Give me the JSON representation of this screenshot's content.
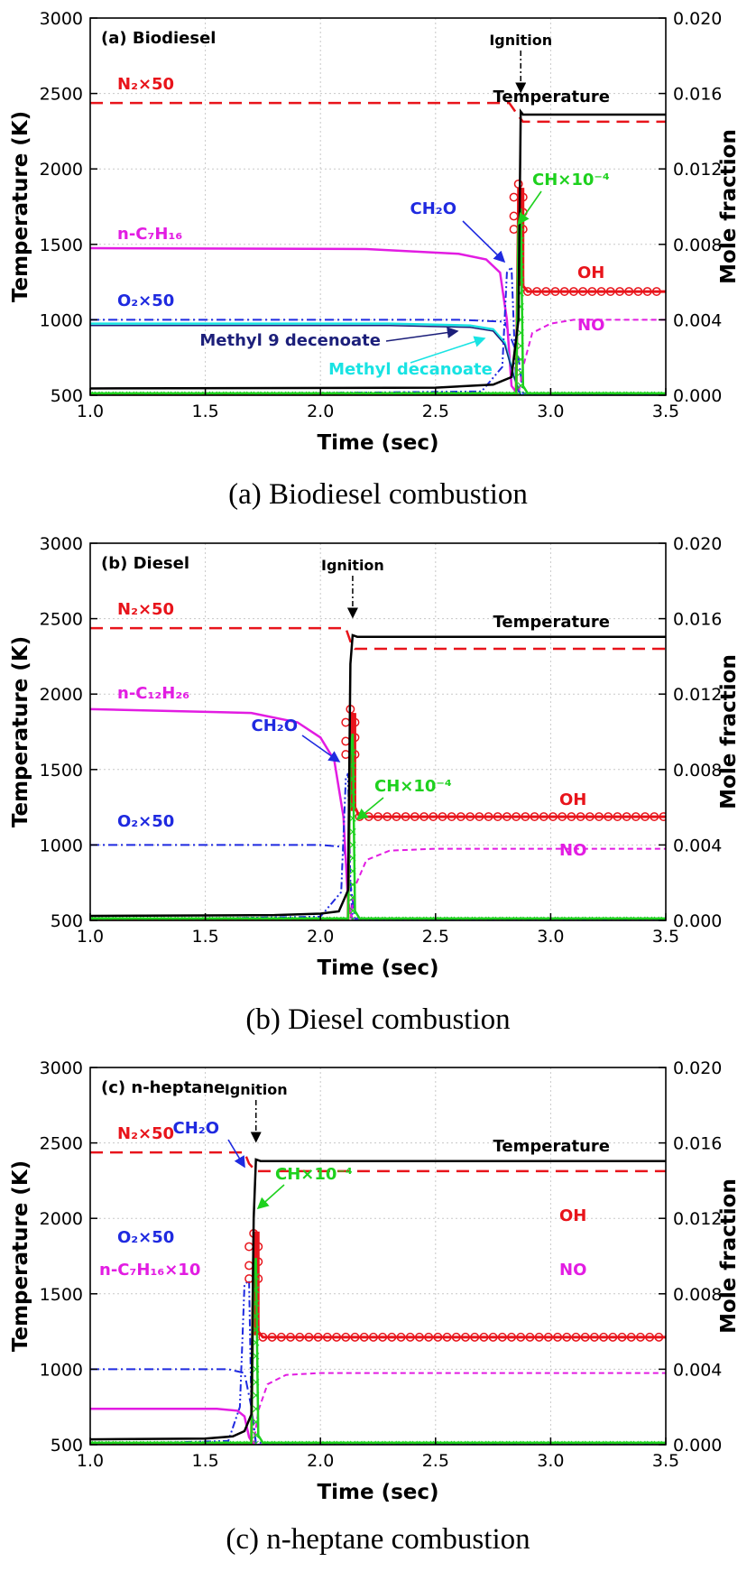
{
  "colors": {
    "temperature": "#000000",
    "n2": "#e8141b",
    "oh": "#e8141b",
    "fuel": "#e21ce2",
    "o2": "#1f2ae0",
    "ch2o": "#1f2ae0",
    "ch": "#1ed11e",
    "no": "#e21ce2",
    "methyl9": "#1c1f7a",
    "methyldecanoate": "#19e3e3",
    "grid": "#c8c8c8"
  },
  "chart_data": [
    {
      "type": "line",
      "panel_label": "(a) Biodiesel",
      "caption": "(a) Biodiesel combustion",
      "xlabel": "Time (sec)",
      "ylabel": "Temperature (K)",
      "y2label": "Mole fraction",
      "xlim": [
        1.0,
        3.5
      ],
      "ylim": [
        500,
        3000
      ],
      "y2lim": [
        0.0,
        0.02
      ],
      "xticks": [
        "1.0",
        "1.5",
        "2.0",
        "2.5",
        "3.0",
        "3.5"
      ],
      "yticks": [
        "500",
        "1000",
        "1500",
        "2000",
        "2500",
        "3000"
      ],
      "y2ticks": [
        "0.000",
        "0.004",
        "0.008",
        "0.012",
        "0.016",
        "0.020"
      ],
      "grid": true,
      "ignition_time": 2.87,
      "ignition_label": "Ignition",
      "labels": {
        "temperature": "Temperature",
        "n2": "N₂×50",
        "fuel": "n-C₇H₁₆",
        "o2": "O₂×50",
        "ch2o": "CH₂O",
        "ch": "CH×10⁻⁴",
        "oh": "OH",
        "no": "NO",
        "methyl9": "Methyl 9 decenoate",
        "methyldecanoate": "Methyl decanoate"
      },
      "series": [
        {
          "name": "Temperature",
          "axis": "left",
          "x": [
            1.0,
            2.5,
            2.75,
            2.83,
            2.86,
            2.87,
            2.88,
            3.5
          ],
          "y": [
            545,
            550,
            570,
            620,
            1000,
            2380,
            2360,
            2360
          ]
        },
        {
          "name": "N2x50",
          "axis": "right",
          "x": [
            1.0,
            2.82,
            2.86,
            2.88,
            3.5
          ],
          "y": [
            0.0155,
            0.0155,
            0.0148,
            0.0145,
            0.0145
          ]
        },
        {
          "name": "n-C7H16",
          "axis": "right",
          "x": [
            1.0,
            2.2,
            2.6,
            2.72,
            2.78,
            2.81,
            2.83,
            2.86,
            3.5
          ],
          "y": [
            0.0078,
            0.00775,
            0.0075,
            0.0072,
            0.0065,
            0.004,
            0.0005,
            0.0,
            0.0
          ]
        },
        {
          "name": "O2x50",
          "axis": "right",
          "x": [
            1.0,
            2.6,
            2.8,
            2.86,
            2.88,
            3.5
          ],
          "y": [
            0.004,
            0.004,
            0.0039,
            0.002,
            0.0001,
            0.0001
          ]
        },
        {
          "name": "Methyl decanoate",
          "axis": "right",
          "x": [
            1.0,
            2.3,
            2.65,
            2.75,
            2.8,
            2.84,
            2.87,
            3.5
          ],
          "y": [
            0.0038,
            0.0038,
            0.0037,
            0.0035,
            0.0028,
            0.001,
            0.0,
            0.0
          ]
        },
        {
          "name": "Methyl 9 decenoate",
          "axis": "right",
          "x": [
            1.0,
            2.3,
            2.65,
            2.75,
            2.8,
            2.84,
            2.87,
            3.5
          ],
          "y": [
            0.0037,
            0.0037,
            0.0036,
            0.0034,
            0.0027,
            0.001,
            0.0,
            0.0
          ]
        },
        {
          "name": "CH2O",
          "axis": "right",
          "x": [
            1.0,
            2.7,
            2.79,
            2.81,
            2.83,
            2.85,
            2.87,
            3.5
          ],
          "y": [
            0.0,
            0.0002,
            0.0015,
            0.0065,
            0.0068,
            0.0005,
            0.0,
            0.0
          ]
        },
        {
          "name": "NO",
          "axis": "right",
          "x": [
            1.0,
            2.86,
            2.88,
            2.92,
            3.0,
            3.1,
            3.5
          ],
          "y": [
            0.0,
            0.0,
            0.0015,
            0.0033,
            0.0038,
            0.004,
            0.004
          ]
        },
        {
          "name": "OH",
          "axis": "right",
          "x": [
            1.0,
            2.85,
            2.86,
            2.87,
            2.88,
            2.9,
            3.5
          ],
          "y": [
            0.0,
            0.0,
            0.0105,
            0.011,
            0.0058,
            0.0055,
            0.0055
          ]
        },
        {
          "name": "CHx1e-4",
          "axis": "right",
          "x": [
            1.0,
            2.85,
            2.86,
            2.87,
            2.88,
            2.9,
            3.5
          ],
          "y": [
            0.0001,
            0.0001,
            0.009,
            0.0099,
            0.0005,
            0.0001,
            0.0001
          ]
        }
      ]
    },
    {
      "type": "line",
      "panel_label": "(b) Diesel",
      "caption": "(b) Diesel combustion",
      "xlabel": "Time (sec)",
      "ylabel": "Temperature (K)",
      "y2label": "Mole fraction",
      "xlim": [
        1.0,
        3.5
      ],
      "ylim": [
        500,
        3000
      ],
      "y2lim": [
        0.0,
        0.02
      ],
      "xticks": [
        "1.0",
        "1.5",
        "2.0",
        "2.5",
        "3.0",
        "3.5"
      ],
      "yticks": [
        "500",
        "1000",
        "1500",
        "2000",
        "2500",
        "3000"
      ],
      "y2ticks": [
        "0.000",
        "0.004",
        "0.008",
        "0.012",
        "0.016",
        "0.020"
      ],
      "grid": true,
      "ignition_time": 2.14,
      "ignition_label": "Ignition",
      "labels": {
        "temperature": "Temperature",
        "n2": "N₂×50",
        "fuel": "n-C₁₂H₂₆",
        "o2": "O₂×50",
        "ch2o": "CH₂O",
        "ch": "CH×10⁻⁴",
        "oh": "OH",
        "no": "NO"
      },
      "series": [
        {
          "name": "Temperature",
          "axis": "left",
          "x": [
            1.0,
            1.8,
            2.0,
            2.08,
            2.12,
            2.13,
            2.14,
            2.16,
            3.5
          ],
          "y": [
            530,
            535,
            545,
            560,
            700,
            2200,
            2390,
            2380,
            2380
          ]
        },
        {
          "name": "N2x50",
          "axis": "right",
          "x": [
            1.0,
            2.11,
            2.13,
            2.15,
            3.5
          ],
          "y": [
            0.0155,
            0.0155,
            0.0148,
            0.0144,
            0.0144
          ]
        },
        {
          "name": "n-C12H26",
          "axis": "right",
          "x": [
            1.0,
            1.7,
            1.9,
            2.0,
            2.06,
            2.1,
            2.12,
            2.14,
            3.5
          ],
          "y": [
            0.0112,
            0.011,
            0.0105,
            0.0097,
            0.0085,
            0.0055,
            0.001,
            0.0,
            0.0
          ]
        },
        {
          "name": "O2x50",
          "axis": "right",
          "x": [
            1.0,
            2.0,
            2.1,
            2.13,
            2.15,
            3.5
          ],
          "y": [
            0.004,
            0.004,
            0.0039,
            0.002,
            0.0001,
            0.0001
          ]
        },
        {
          "name": "CH2O",
          "axis": "right",
          "x": [
            1.0,
            2.0,
            2.09,
            2.11,
            2.12,
            2.13,
            2.14,
            3.5
          ],
          "y": [
            0.0,
            0.0002,
            0.0015,
            0.0075,
            0.0078,
            0.002,
            0.0,
            0.0
          ]
        },
        {
          "name": "NO",
          "axis": "right",
          "x": [
            1.0,
            2.13,
            2.15,
            2.2,
            2.3,
            2.5,
            3.5
          ],
          "y": [
            0.0,
            0.0,
            0.0018,
            0.0032,
            0.0037,
            0.0038,
            0.0038
          ]
        },
        {
          "name": "OH",
          "axis": "right",
          "x": [
            1.0,
            2.12,
            2.13,
            2.14,
            2.15,
            2.17,
            3.5
          ],
          "y": [
            0.0,
            0.0,
            0.0105,
            0.011,
            0.006,
            0.0055,
            0.0055
          ]
        },
        {
          "name": "CHx1e-4",
          "axis": "right",
          "x": [
            1.0,
            2.12,
            2.13,
            2.14,
            2.15,
            2.17,
            3.5
          ],
          "y": [
            0.0001,
            0.0001,
            0.009,
            0.0099,
            0.0005,
            0.0001,
            0.0001
          ]
        }
      ]
    },
    {
      "type": "line",
      "panel_label": "(c) n-heptane",
      "caption": "(c) n-heptane combustion",
      "xlabel": "Time (sec)",
      "ylabel": "Temperature (K)",
      "y2label": "Mole fraction",
      "xlim": [
        1.0,
        3.5
      ],
      "ylim": [
        500,
        3000
      ],
      "y2lim": [
        0.0,
        0.02
      ],
      "xticks": [
        "1.0",
        "1.5",
        "2.0",
        "2.5",
        "3.0",
        "3.5"
      ],
      "yticks": [
        "500",
        "1000",
        "1500",
        "2000",
        "2500",
        "3000"
      ],
      "y2ticks": [
        "0.000",
        "0.004",
        "0.008",
        "0.012",
        "0.016",
        "0.020"
      ],
      "grid": true,
      "ignition_time": 1.72,
      "ignition_label": "Ignition",
      "labels": {
        "temperature": "Temperature",
        "n2": "N₂×50",
        "fuel": "n-C₇H₁₆×10",
        "o2": "O₂×50",
        "ch2o": "CH₂O",
        "ch": "CH×10⁻⁴",
        "oh": "OH",
        "no": "NO"
      },
      "series": [
        {
          "name": "Temperature",
          "axis": "left",
          "x": [
            1.0,
            1.5,
            1.62,
            1.67,
            1.7,
            1.71,
            1.72,
            1.74,
            3.5
          ],
          "y": [
            535,
            540,
            555,
            590,
            700,
            2000,
            2390,
            2380,
            2380
          ]
        },
        {
          "name": "N2x50",
          "axis": "right",
          "x": [
            1.0,
            1.67,
            1.69,
            1.72,
            3.5
          ],
          "y": [
            0.0155,
            0.0155,
            0.0149,
            0.0145,
            0.0145
          ]
        },
        {
          "name": "n-C7H16x10",
          "axis": "right",
          "x": [
            1.0,
            1.55,
            1.64,
            1.67,
            1.69,
            1.71,
            3.5
          ],
          "y": [
            0.0019,
            0.0019,
            0.0018,
            0.0015,
            0.0004,
            0.0,
            0.0
          ]
        },
        {
          "name": "O2x50",
          "axis": "right",
          "x": [
            1.0,
            1.6,
            1.67,
            1.7,
            1.72,
            3.5
          ],
          "y": [
            0.004,
            0.004,
            0.0038,
            0.002,
            0.0001,
            0.0001
          ]
        },
        {
          "name": "CH2O",
          "axis": "right",
          "x": [
            1.0,
            1.6,
            1.65,
            1.67,
            1.69,
            1.7,
            1.72,
            3.5
          ],
          "y": [
            0.0,
            0.0002,
            0.002,
            0.0085,
            0.0087,
            0.002,
            0.0,
            0.0
          ]
        },
        {
          "name": "NO",
          "axis": "right",
          "x": [
            1.0,
            1.71,
            1.73,
            1.77,
            1.85,
            2.0,
            3.5
          ],
          "y": [
            0.0,
            0.0,
            0.0018,
            0.0032,
            0.0037,
            0.0038,
            0.0038
          ]
        },
        {
          "name": "OH",
          "axis": "right",
          "x": [
            1.0,
            1.7,
            1.71,
            1.72,
            1.73,
            1.75,
            3.5
          ],
          "y": [
            0.0,
            0.0,
            0.0108,
            0.0113,
            0.006,
            0.0057,
            0.0057
          ]
        },
        {
          "name": "CHx1e-4",
          "axis": "right",
          "x": [
            1.0,
            1.7,
            1.71,
            1.72,
            1.73,
            1.75,
            3.5
          ],
          "y": [
            0.0001,
            0.0001,
            0.009,
            0.0099,
            0.0005,
            0.0001,
            0.0001
          ]
        }
      ]
    }
  ]
}
